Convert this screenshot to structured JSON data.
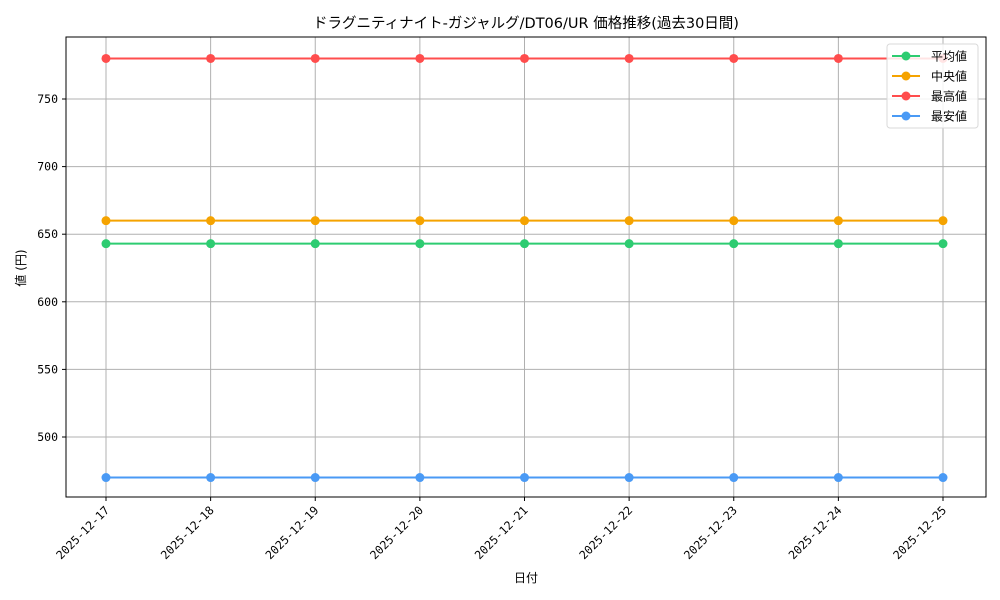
{
  "chart_data": {
    "type": "line",
    "title": "ドラグニティナイト-ガジャルグ/DT06/UR 価格推移(過去30日間)",
    "xlabel": "日付",
    "ylabel": "値 (円)",
    "categories": [
      "2025-12-17",
      "2025-12-18",
      "2025-12-19",
      "2025-12-20",
      "2025-12-21",
      "2025-12-22",
      "2025-12-23",
      "2025-12-24",
      "2025-12-25"
    ],
    "yticks": [
      500,
      550,
      600,
      650,
      700,
      750
    ],
    "ylim": [
      455,
      790
    ],
    "grid": true,
    "legend_position": "upper right",
    "series": [
      {
        "name": "平均値",
        "color": "#2ecc71",
        "values": [
          643,
          643,
          643,
          643,
          643,
          643,
          643,
          643,
          643
        ]
      },
      {
        "name": "中央値",
        "color": "#f5a300",
        "values": [
          660,
          660,
          660,
          660,
          660,
          660,
          660,
          660,
          660
        ]
      },
      {
        "name": "最高値",
        "color": "#ff4d4d",
        "values": [
          780,
          780,
          780,
          780,
          780,
          780,
          780,
          780,
          780
        ]
      },
      {
        "name": "最安値",
        "color": "#4a9af5",
        "values": [
          470,
          470,
          470,
          470,
          470,
          470,
          470,
          470,
          470
        ]
      }
    ]
  }
}
